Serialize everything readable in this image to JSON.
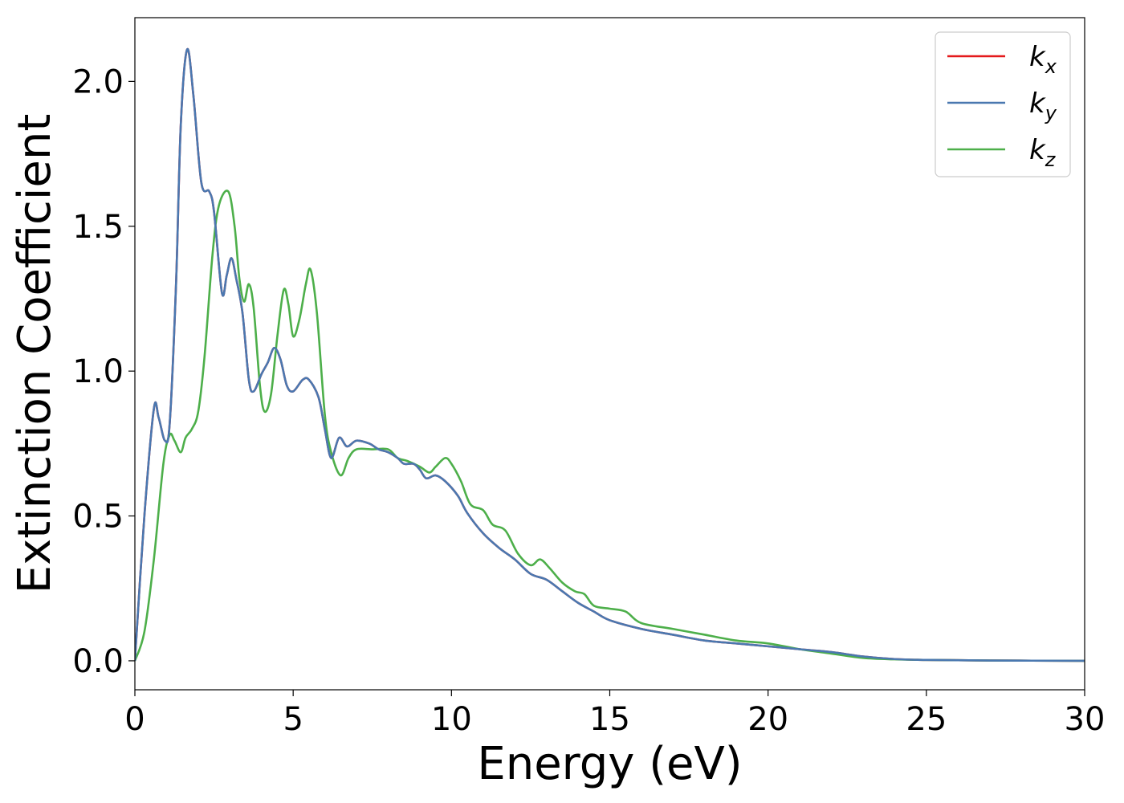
{
  "chart_data": {
    "type": "line",
    "title": "",
    "xlabel": "Energy (eV)",
    "ylabel": "Extinction Coefficient",
    "xlim": [
      0,
      30
    ],
    "ylim": [
      -0.1,
      2.22
    ],
    "xticks": [
      "0",
      "5",
      "10",
      "15",
      "20",
      "25",
      "30"
    ],
    "yticks": [
      "0.0",
      "0.5",
      "1.0",
      "1.5",
      "2.0"
    ],
    "grid": false,
    "legend_position": "top-right",
    "series": [
      {
        "name": "k_x",
        "legend_base": "k",
        "legend_sub": "x",
        "color": "#e41a1c",
        "points": [
          [
            0,
            0
          ],
          [
            0.3,
            0.5
          ],
          [
            0.6,
            0.87
          ],
          [
            0.75,
            0.84
          ],
          [
            0.95,
            0.76
          ],
          [
            1.1,
            0.82
          ],
          [
            1.3,
            1.3
          ],
          [
            1.45,
            1.85
          ],
          [
            1.65,
            2.11
          ],
          [
            1.85,
            1.95
          ],
          [
            2.1,
            1.65
          ],
          [
            2.35,
            1.62
          ],
          [
            2.5,
            1.55
          ],
          [
            2.75,
            1.27
          ],
          [
            2.9,
            1.33
          ],
          [
            3.05,
            1.39
          ],
          [
            3.2,
            1.32
          ],
          [
            3.4,
            1.2
          ],
          [
            3.6,
            0.97
          ],
          [
            3.75,
            0.93
          ],
          [
            4.0,
            0.99
          ],
          [
            4.2,
            1.03
          ],
          [
            4.4,
            1.08
          ],
          [
            4.6,
            1.04
          ],
          [
            4.8,
            0.95
          ],
          [
            5.0,
            0.93
          ],
          [
            5.3,
            0.97
          ],
          [
            5.5,
            0.97
          ],
          [
            5.8,
            0.91
          ],
          [
            6.0,
            0.8
          ],
          [
            6.2,
            0.7
          ],
          [
            6.45,
            0.77
          ],
          [
            6.7,
            0.74
          ],
          [
            7.0,
            0.76
          ],
          [
            7.4,
            0.75
          ],
          [
            7.7,
            0.73
          ],
          [
            8.0,
            0.72
          ],
          [
            8.3,
            0.7
          ],
          [
            8.5,
            0.68
          ],
          [
            8.8,
            0.68
          ],
          [
            9.0,
            0.66
          ],
          [
            9.2,
            0.63
          ],
          [
            9.5,
            0.64
          ],
          [
            9.8,
            0.62
          ],
          [
            10.2,
            0.57
          ],
          [
            10.5,
            0.51
          ],
          [
            11.0,
            0.44
          ],
          [
            11.5,
            0.39
          ],
          [
            12.0,
            0.35
          ],
          [
            12.5,
            0.3
          ],
          [
            13.0,
            0.28
          ],
          [
            13.5,
            0.24
          ],
          [
            14.0,
            0.2
          ],
          [
            14.5,
            0.17
          ],
          [
            15.0,
            0.14
          ],
          [
            16.0,
            0.11
          ],
          [
            17.0,
            0.09
          ],
          [
            18.0,
            0.07
          ],
          [
            19.0,
            0.06
          ],
          [
            20.0,
            0.05
          ],
          [
            21.0,
            0.04
          ],
          [
            22.0,
            0.03
          ],
          [
            23.0,
            0.015
          ],
          [
            24.0,
            0.006
          ],
          [
            25.0,
            0.003
          ],
          [
            27.0,
            0.001
          ],
          [
            30.0,
            0.0
          ]
        ]
      },
      {
        "name": "k_y",
        "legend_base": "k",
        "legend_sub": "y",
        "color": "#4a78b0",
        "points": [
          [
            0,
            0
          ],
          [
            0.3,
            0.5
          ],
          [
            0.6,
            0.87
          ],
          [
            0.75,
            0.84
          ],
          [
            0.95,
            0.76
          ],
          [
            1.1,
            0.82
          ],
          [
            1.3,
            1.3
          ],
          [
            1.45,
            1.85
          ],
          [
            1.65,
            2.11
          ],
          [
            1.85,
            1.95
          ],
          [
            2.1,
            1.65
          ],
          [
            2.35,
            1.62
          ],
          [
            2.5,
            1.55
          ],
          [
            2.75,
            1.27
          ],
          [
            2.9,
            1.33
          ],
          [
            3.05,
            1.39
          ],
          [
            3.2,
            1.32
          ],
          [
            3.4,
            1.2
          ],
          [
            3.6,
            0.97
          ],
          [
            3.75,
            0.93
          ],
          [
            4.0,
            0.99
          ],
          [
            4.2,
            1.03
          ],
          [
            4.4,
            1.08
          ],
          [
            4.6,
            1.04
          ],
          [
            4.8,
            0.95
          ],
          [
            5.0,
            0.93
          ],
          [
            5.3,
            0.97
          ],
          [
            5.5,
            0.97
          ],
          [
            5.8,
            0.91
          ],
          [
            6.0,
            0.8
          ],
          [
            6.2,
            0.7
          ],
          [
            6.45,
            0.77
          ],
          [
            6.7,
            0.74
          ],
          [
            7.0,
            0.76
          ],
          [
            7.4,
            0.75
          ],
          [
            7.7,
            0.73
          ],
          [
            8.0,
            0.72
          ],
          [
            8.3,
            0.7
          ],
          [
            8.5,
            0.68
          ],
          [
            8.8,
            0.68
          ],
          [
            9.0,
            0.66
          ],
          [
            9.2,
            0.63
          ],
          [
            9.5,
            0.64
          ],
          [
            9.8,
            0.62
          ],
          [
            10.2,
            0.57
          ],
          [
            10.5,
            0.51
          ],
          [
            11.0,
            0.44
          ],
          [
            11.5,
            0.39
          ],
          [
            12.0,
            0.35
          ],
          [
            12.5,
            0.3
          ],
          [
            13.0,
            0.28
          ],
          [
            13.5,
            0.24
          ],
          [
            14.0,
            0.2
          ],
          [
            14.5,
            0.17
          ],
          [
            15.0,
            0.14
          ],
          [
            16.0,
            0.11
          ],
          [
            17.0,
            0.09
          ],
          [
            18.0,
            0.07
          ],
          [
            19.0,
            0.06
          ],
          [
            20.0,
            0.05
          ],
          [
            21.0,
            0.04
          ],
          [
            22.0,
            0.03
          ],
          [
            23.0,
            0.015
          ],
          [
            24.0,
            0.006
          ],
          [
            25.0,
            0.003
          ],
          [
            27.0,
            0.001
          ],
          [
            30.0,
            0.0
          ]
        ]
      },
      {
        "name": "k_z",
        "legend_base": "k",
        "legend_sub": "z",
        "color": "#4daf4a",
        "points": [
          [
            0,
            0
          ],
          [
            0.3,
            0.1
          ],
          [
            0.6,
            0.35
          ],
          [
            0.9,
            0.68
          ],
          [
            1.1,
            0.78
          ],
          [
            1.25,
            0.76
          ],
          [
            1.45,
            0.72
          ],
          [
            1.6,
            0.77
          ],
          [
            1.8,
            0.8
          ],
          [
            2.0,
            0.86
          ],
          [
            2.2,
            1.05
          ],
          [
            2.45,
            1.4
          ],
          [
            2.65,
            1.57
          ],
          [
            2.95,
            1.62
          ],
          [
            3.15,
            1.5
          ],
          [
            3.3,
            1.32
          ],
          [
            3.45,
            1.24
          ],
          [
            3.6,
            1.3
          ],
          [
            3.75,
            1.22
          ],
          [
            3.95,
            0.95
          ],
          [
            4.1,
            0.86
          ],
          [
            4.3,
            0.92
          ],
          [
            4.5,
            1.12
          ],
          [
            4.7,
            1.28
          ],
          [
            4.85,
            1.23
          ],
          [
            5.0,
            1.12
          ],
          [
            5.2,
            1.18
          ],
          [
            5.4,
            1.3
          ],
          [
            5.55,
            1.35
          ],
          [
            5.75,
            1.2
          ],
          [
            6.0,
            0.85
          ],
          [
            6.2,
            0.72
          ],
          [
            6.5,
            0.64
          ],
          [
            6.75,
            0.7
          ],
          [
            7.0,
            0.73
          ],
          [
            7.5,
            0.73
          ],
          [
            8.0,
            0.73
          ],
          [
            8.3,
            0.7
          ],
          [
            8.6,
            0.69
          ],
          [
            9.0,
            0.67
          ],
          [
            9.3,
            0.65
          ],
          [
            9.5,
            0.67
          ],
          [
            9.8,
            0.7
          ],
          [
            10.0,
            0.68
          ],
          [
            10.3,
            0.62
          ],
          [
            10.6,
            0.54
          ],
          [
            11.0,
            0.52
          ],
          [
            11.3,
            0.47
          ],
          [
            11.7,
            0.45
          ],
          [
            12.1,
            0.37
          ],
          [
            12.5,
            0.33
          ],
          [
            12.8,
            0.35
          ],
          [
            13.1,
            0.32
          ],
          [
            13.5,
            0.27
          ],
          [
            13.9,
            0.24
          ],
          [
            14.2,
            0.23
          ],
          [
            14.5,
            0.19
          ],
          [
            15.0,
            0.18
          ],
          [
            15.5,
            0.17
          ],
          [
            16.0,
            0.13
          ],
          [
            17.0,
            0.11
          ],
          [
            18.0,
            0.09
          ],
          [
            19.0,
            0.07
          ],
          [
            20.0,
            0.06
          ],
          [
            21.0,
            0.04
          ],
          [
            22.0,
            0.025
          ],
          [
            23.0,
            0.01
          ],
          [
            24.0,
            0.005
          ],
          [
            25.0,
            0.003
          ],
          [
            27.0,
            0.001
          ],
          [
            30.0,
            0.0
          ]
        ]
      }
    ]
  }
}
